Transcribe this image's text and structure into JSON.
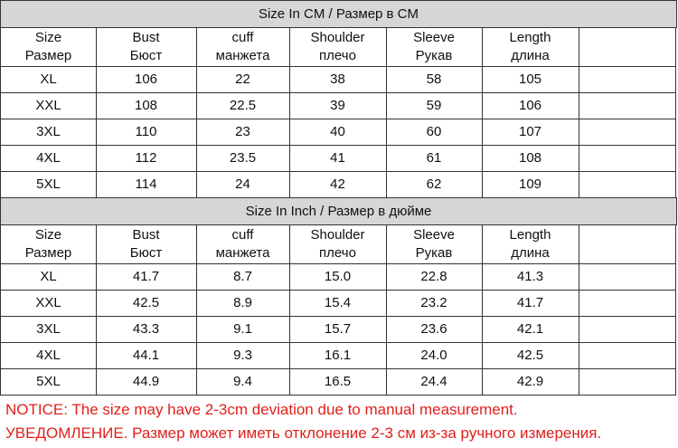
{
  "sections": [
    {
      "title": "Size In CM / Размер в CM",
      "headers": [
        [
          "Size",
          "Размер"
        ],
        [
          "Bust",
          "Бюст"
        ],
        [
          "cuff",
          "манжета"
        ],
        [
          "Shoulder",
          "плечо"
        ],
        [
          "Sleeve",
          "Рукав"
        ],
        [
          "Length",
          "длина"
        ]
      ],
      "rows": [
        [
          "XL",
          "106",
          "22",
          "38",
          "58",
          "105"
        ],
        [
          "XXL",
          "108",
          "22.5",
          "39",
          "59",
          "106"
        ],
        [
          "3XL",
          "110",
          "23",
          "40",
          "60",
          "107"
        ],
        [
          "4XL",
          "112",
          "23.5",
          "41",
          "61",
          "108"
        ],
        [
          "5XL",
          "114",
          "24",
          "42",
          "62",
          "109"
        ]
      ]
    },
    {
      "title": "Size In Inch / Размер в дюйме",
      "headers": [
        [
          "Size",
          "Размер"
        ],
        [
          "Bust",
          "Бюст"
        ],
        [
          "cuff",
          "манжета"
        ],
        [
          "Shoulder",
          "плечо"
        ],
        [
          "Sleeve",
          "Рукав"
        ],
        [
          "Length",
          "длина"
        ]
      ],
      "rows": [
        [
          "XL",
          "41.7",
          "8.7",
          "15.0",
          "22.8",
          "41.3"
        ],
        [
          "XXL",
          "42.5",
          "8.9",
          "15.4",
          "23.2",
          "41.7"
        ],
        [
          "3XL",
          "43.3",
          "9.1",
          "15.7",
          "23.6",
          "42.1"
        ],
        [
          "4XL",
          "44.1",
          "9.3",
          "16.1",
          "24.0",
          "42.5"
        ],
        [
          "5XL",
          "44.9",
          "9.4",
          "16.5",
          "24.4",
          "42.9"
        ]
      ]
    }
  ],
  "notice": [
    "NOTICE:  The size may have 2-3cm deviation due to manual measurement.",
    "УВЕДОМЛЕНИЕ. Размер может иметь отклонение 2-3 см из-за ручного измерения."
  ]
}
